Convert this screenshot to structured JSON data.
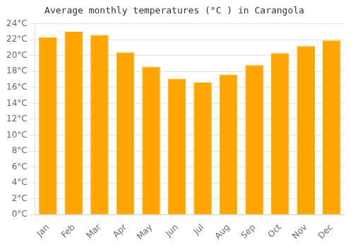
{
  "chart_data": {
    "type": "bar",
    "title": "Average monthly temperatures (°C ) in Carangola",
    "categories": [
      "Jan",
      "Feb",
      "Mar",
      "Apr",
      "May",
      "Jun",
      "Jul",
      "Aug",
      "Sep",
      "Oct",
      "Nov",
      "Dec"
    ],
    "values": [
      22.3,
      23.0,
      22.6,
      20.4,
      18.6,
      17.1,
      16.6,
      17.6,
      18.8,
      20.3,
      21.2,
      21.9
    ],
    "color": "#FFA500",
    "ylim": [
      0,
      24
    ],
    "yticks": [
      {
        "value": 0,
        "label": "0°C"
      },
      {
        "value": 2,
        "label": "2°C"
      },
      {
        "value": 4,
        "label": "4°C"
      },
      {
        "value": 6,
        "label": "6°C"
      },
      {
        "value": 8,
        "label": "8°C"
      },
      {
        "value": 10,
        "label": "10°C"
      },
      {
        "value": 12,
        "label": "12°C"
      },
      {
        "value": 14,
        "label": "14°C"
      },
      {
        "value": 16,
        "label": "16°C"
      },
      {
        "value": 18,
        "label": "18°C"
      },
      {
        "value": 20,
        "label": "20°C"
      },
      {
        "value": 22,
        "label": "22°C"
      },
      {
        "value": 24,
        "label": "24°C"
      }
    ],
    "grid": true
  }
}
